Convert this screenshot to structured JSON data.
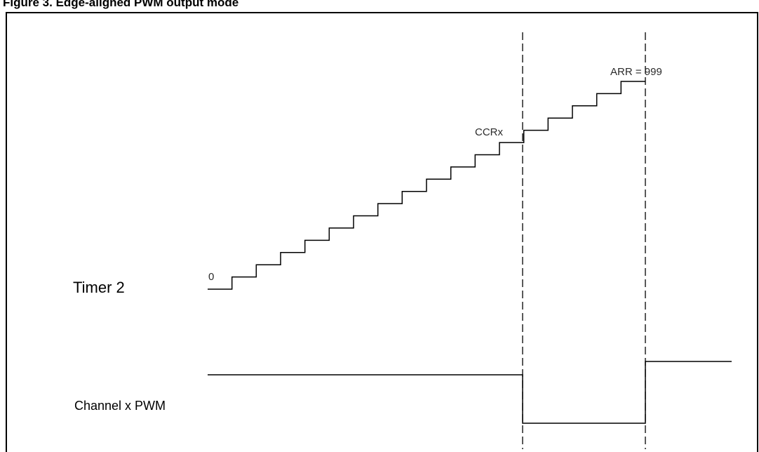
{
  "figure": {
    "caption": "Figure 3. Edge-aligned PWM output mode"
  },
  "diagram": {
    "signals": {
      "timer_label": "Timer 2",
      "pwm_label": "Channel x PWM"
    },
    "counter": {
      "start_value_label": "0",
      "compare_label": "CCRx",
      "reload_label": "ARR = 999",
      "total_steps": 18,
      "compare_step": 13
    },
    "colors": {
      "line": "#000000",
      "frame": "#000000",
      "background": "#ffffff"
    }
  }
}
